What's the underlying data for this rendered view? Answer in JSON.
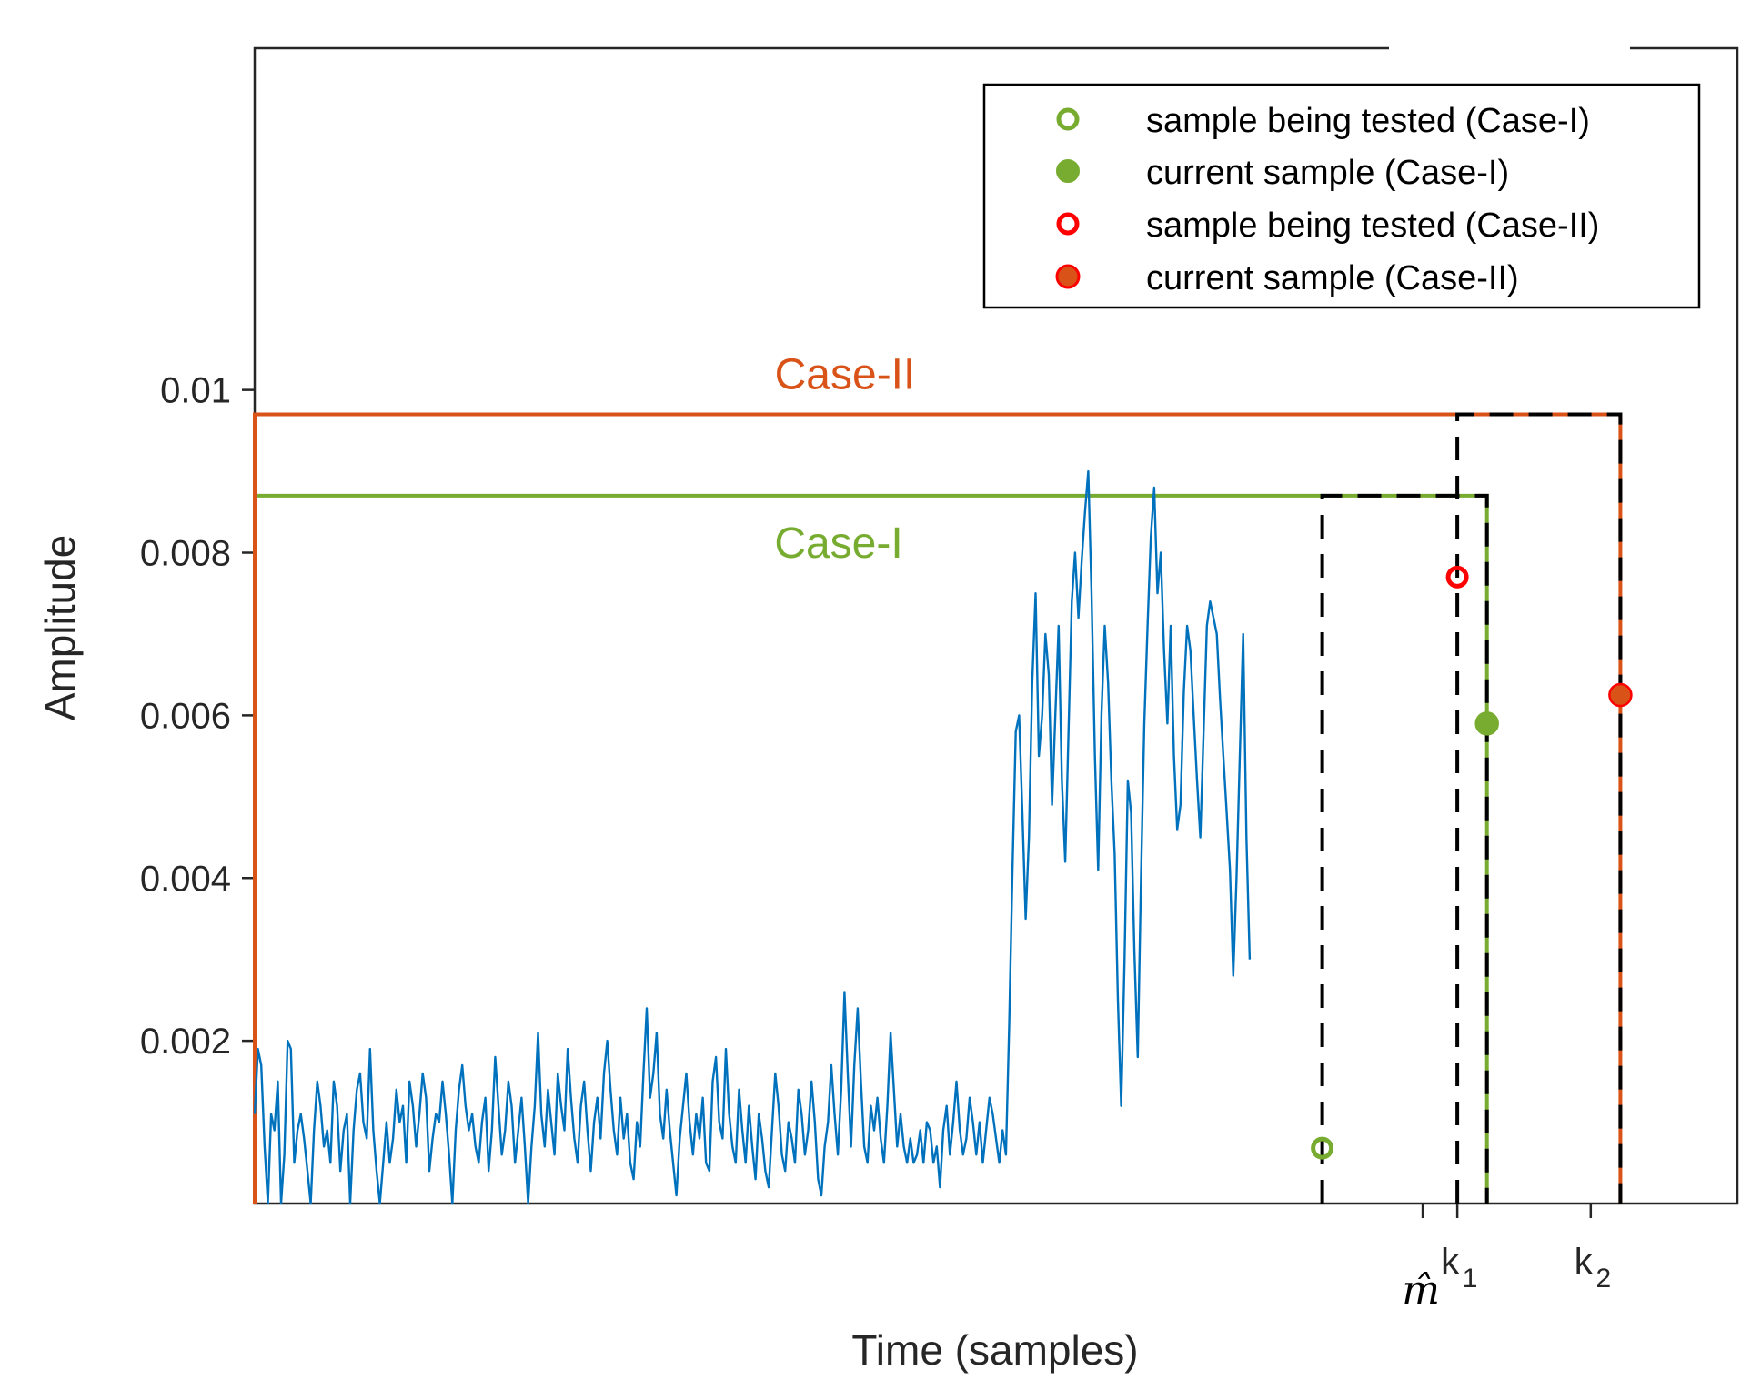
{
  "chart_data": {
    "type": "line",
    "title": "",
    "xlabel": "Time (samples)",
    "ylabel": "Amplitude",
    "xlim": [
      0,
      900
    ],
    "ylim": [
      0,
      0.0142
    ],
    "yticks": [
      0.002,
      0.004,
      0.006,
      0.008,
      0.01
    ],
    "ytick_labels": [
      "0.002",
      "0.004",
      "0.006",
      "0.008",
      "0.01"
    ],
    "xticks": [
      709,
      730,
      811
    ],
    "xtick_labels": [
      {
        "main": "m̂",
        "sub": ""
      },
      {
        "main": "k",
        "sub": "1"
      },
      {
        "main": "k",
        "sub": "2"
      }
    ],
    "grid": false,
    "legend_position": "top-right",
    "signal": {
      "name": "signal",
      "color": "#0072BD",
      "x_start": 0,
      "x_step": 2,
      "values": [
        0.0011,
        0.0019,
        0.0017,
        0.0007,
        0,
        0.0011,
        0.0009,
        0.0015,
        0,
        0.0006,
        0.002,
        0.0019,
        0.0005,
        0.0009,
        0.0011,
        0.0008,
        0.0004,
        0,
        0.0009,
        0.0015,
        0.0012,
        0.0007,
        0.0009,
        0.0005,
        0.0015,
        0.0012,
        0.0004,
        0.0009,
        0.0011,
        0,
        0.0009,
        0.0014,
        0.0016,
        0.001,
        0.0008,
        0.0019,
        0.0009,
        0.0004,
        0,
        0.0005,
        0.001,
        0.0005,
        0.0008,
        0.0014,
        0.001,
        0.0012,
        0.0005,
        0.0015,
        0.0012,
        0.0007,
        0.0011,
        0.0016,
        0.0013,
        0.0004,
        0.0008,
        0.0011,
        0.001,
        0.0015,
        0.0011,
        0.0006,
        0,
        0.0009,
        0.0014,
        0.0017,
        0.0012,
        0.0009,
        0.0011,
        0.0007,
        0.0005,
        0.001,
        0.0013,
        0.0004,
        0.0009,
        0.0018,
        0.0012,
        0.0006,
        0.0009,
        0.0015,
        0.0012,
        0.0005,
        0.0009,
        0.0013,
        0.0007,
        0,
        0.0007,
        0.0012,
        0.0021,
        0.0011,
        0.0007,
        0.0014,
        0.001,
        0.0006,
        0.0016,
        0.0012,
        0.0009,
        0.0019,
        0.0013,
        0.0008,
        0.0005,
        0.0012,
        0.0015,
        0.0009,
        0.0004,
        0.001,
        0.0013,
        0.0008,
        0.0016,
        0.002,
        0.0014,
        0.0009,
        0.0006,
        0.0013,
        0.0008,
        0.0011,
        0.0005,
        0.0003,
        0.001,
        0.0007,
        0.0016,
        0.0024,
        0.0013,
        0.0016,
        0.0021,
        0.0011,
        0.0008,
        0.0014,
        0.0009,
        0.0005,
        0.0001,
        0.0008,
        0.0012,
        0.0016,
        0.001,
        0.0006,
        0.0011,
        0.0008,
        0.0013,
        0.0005,
        0.0004,
        0.0015,
        0.0018,
        0.001,
        0.0008,
        0.0019,
        0.0011,
        0.0007,
        0.0005,
        0.0014,
        0.0009,
        0.0005,
        0.0012,
        0.0007,
        0.0003,
        0.0011,
        0.0008,
        0.0004,
        0.0002,
        0.0009,
        0.0016,
        0.0012,
        0.0006,
        0.0004,
        0.001,
        0.0008,
        0.0005,
        0.0014,
        0.0011,
        0.0006,
        0.0009,
        0.0015,
        0.001,
        0.0003,
        0.0001,
        0.0007,
        0.001,
        0.0017,
        0.0011,
        0.0006,
        0.0014,
        0.0026,
        0.0016,
        0.0007,
        0.0017,
        0.0024,
        0.0015,
        0.0007,
        0.0005,
        0.0012,
        0.0009,
        0.0013,
        0.0008,
        0.0005,
        0.0012,
        0.0021,
        0.0014,
        0.0007,
        0.0011,
        0.0007,
        0.0005,
        0.0008,
        0.0005,
        0.0006,
        0.0009,
        0.0005,
        0.001,
        0.0009,
        0.0005,
        0.0007,
        0.0002,
        0.0009,
        0.0012,
        0.0006,
        0.001,
        0.0015,
        0.0009,
        0.0006,
        0.0008,
        0.0013,
        0.001,
        0.0006,
        0.001,
        0.0005,
        0.0009,
        0.0013,
        0.0011,
        0.0008,
        0.0005,
        0.0009,
        0.0006,
        0.0022,
        0.0041,
        0.0058,
        0.006,
        0.0048,
        0.0035,
        0.0045,
        0.0064,
        0.0075,
        0.0055,
        0.006,
        0.007,
        0.0065,
        0.0049,
        0.006,
        0.0071,
        0.0052,
        0.0042,
        0.0058,
        0.0074,
        0.008,
        0.0072,
        0.0079,
        0.0085,
        0.009,
        0.0075,
        0.0055,
        0.0041,
        0.006,
        0.0071,
        0.0064,
        0.0052,
        0.0043,
        0.0025,
        0.0012,
        0.003,
        0.0052,
        0.0048,
        0.0031,
        0.0018,
        0.004,
        0.0059,
        0.0071,
        0.0082,
        0.0088,
        0.0075,
        0.008,
        0.0068,
        0.0059,
        0.0071,
        0.0055,
        0.0046,
        0.0049,
        0.0063,
        0.0071,
        0.0068,
        0.006,
        0.0052,
        0.0045,
        0.0058,
        0.0071,
        0.0074,
        0.0072,
        0.007,
        0.0062,
        0.0055,
        0.0048,
        0.0041,
        0.0028,
        0.004,
        0.0055,
        0.007,
        0.0045,
        0.003
      ]
    },
    "markers": [
      {
        "label": "sample being tested (Case-I)",
        "x": 648,
        "y": 0.00068,
        "fill": "none",
        "edge": "#77AC30"
      },
      {
        "label": "current sample (Case-I)",
        "x": 748,
        "y": 0.0059,
        "fill": "#77AC30",
        "edge": "#77AC30"
      },
      {
        "label": "sample being tested (Case-II)",
        "x": 730,
        "y": 0.0077,
        "fill": "none",
        "edge": "#FF0000"
      },
      {
        "label": "current sample (Case-II)",
        "x": 829,
        "y": 0.00625,
        "fill": "#D95319",
        "edge": "#FF0000"
      }
    ],
    "case_windows": [
      {
        "name": "Case-I",
        "color": "#77AC30",
        "level": 0.0087,
        "x_start": 0,
        "x_end": 748,
        "dashed_from": 648
      },
      {
        "name": "Case-II",
        "color": "#D95319",
        "level": 0.0097,
        "x_start": 0,
        "x_end": 829,
        "dashed_from": 730
      }
    ],
    "legend": [
      "sample being tested (Case-I)",
      "current sample (Case-I)",
      "sample being tested (Case-II)",
      "current sample (Case-II)"
    ],
    "annotations": [
      "Case-II",
      "Case-I"
    ]
  },
  "colors": {
    "signal": "#0072BD",
    "case1": "#77AC30",
    "case2": "#D95319",
    "red": "#FF0000",
    "axis": "#262626"
  }
}
